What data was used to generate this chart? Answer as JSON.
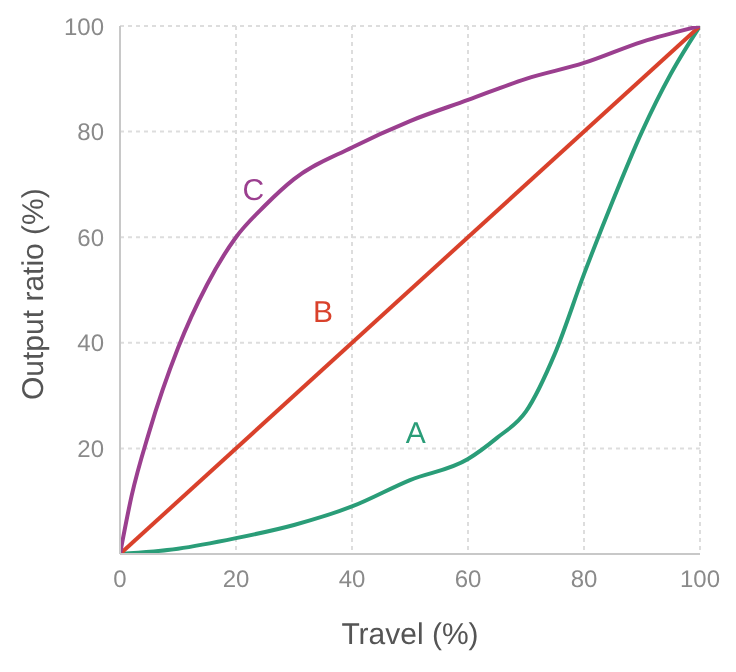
{
  "chart_data": {
    "type": "line",
    "xlabel": "Travel (%)",
    "ylabel": "Output ratio (%)",
    "xlim": [
      0,
      100
    ],
    "ylim": [
      0,
      100
    ],
    "xticks": [
      0,
      20,
      40,
      60,
      80,
      100
    ],
    "yticks": [
      {
        "value": 0,
        "label": null
      },
      20,
      40,
      60,
      80,
      100
    ],
    "grid": true,
    "legend": false,
    "marker": "none",
    "line_style": "solid",
    "series": [
      {
        "name": "A",
        "color": "#2a9d78",
        "x": [
          0,
          10,
          20,
          30,
          40,
          50,
          60,
          65,
          70,
          75,
          80,
          85,
          90,
          95,
          100
        ],
        "values": [
          0,
          1,
          3,
          5.5,
          9,
          14,
          18,
          22,
          27,
          38,
          53,
          67,
          80,
          91,
          100
        ]
      },
      {
        "name": "B",
        "color": "#d9412b",
        "x": [
          0,
          100
        ],
        "values": [
          0,
          100
        ]
      },
      {
        "name": "C",
        "color": "#9b3f8f",
        "x": [
          0,
          2,
          5,
          10,
          15,
          20,
          25,
          30,
          40,
          50,
          60,
          70,
          80,
          90,
          100
        ],
        "values": [
          0,
          11,
          23,
          39,
          51,
          60,
          66,
          71,
          77,
          82,
          86,
          90,
          93,
          97,
          100
        ]
      }
    ]
  }
}
